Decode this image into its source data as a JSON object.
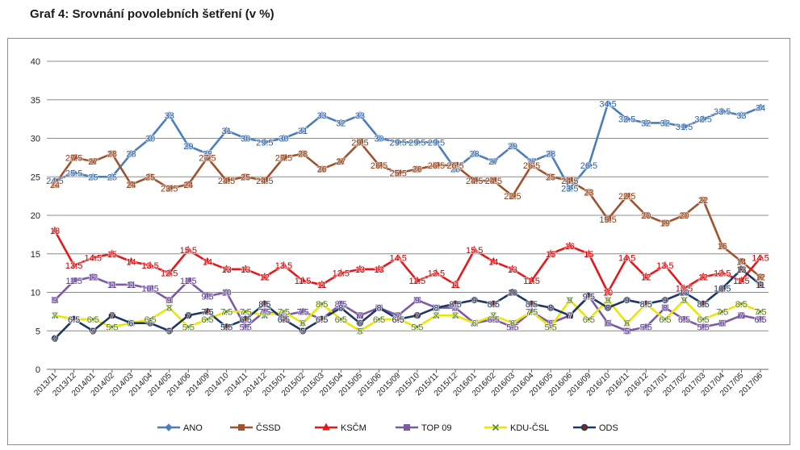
{
  "title": "Graf 4: Srovnání povolebních šetření (v %)",
  "chart_data": {
    "type": "line",
    "title": "Graf 4: Srovnání povolebních šetření (v %)",
    "xlabel": "",
    "ylabel": "",
    "ylim": [
      0,
      40
    ],
    "yticks": [
      "0",
      "5",
      "10",
      "15",
      "20",
      "25",
      "30",
      "35",
      "40"
    ],
    "grid": true,
    "legend_position": "bottom",
    "categories": [
      "2013/11",
      "2013/12",
      "2014/01",
      "2014/02",
      "2014/03",
      "2014/04",
      "2014/05",
      "2014/06",
      "2014/09",
      "2014/10",
      "2014/11",
      "2014/12",
      "2015/01",
      "2015/02",
      "2015/03",
      "2015/04",
      "2015/05",
      "2015/06",
      "2015/09",
      "2015/10",
      "2015/11",
      "2015/12",
      "2016/01",
      "2016/02",
      "2016/03",
      "2016/04",
      "2016/05",
      "2016/06",
      "2016/09",
      "2016/10",
      "2016/11",
      "2016/12",
      "2017/01",
      "2017/02",
      "2017/03",
      "2017/04",
      "2017/05",
      "2017/06"
    ],
    "series": [
      {
        "name": "ANO",
        "color": "#4a7ebb",
        "marker": "diamond",
        "values": [
          24.5,
          25.5,
          25,
          25,
          28,
          30,
          33,
          29,
          28,
          31,
          30,
          29.5,
          30,
          31,
          33,
          32,
          33,
          30,
          29.5,
          29.5,
          29.5,
          26,
          28,
          27,
          29,
          27,
          28,
          23.5,
          26.5,
          34.5,
          32.5,
          32,
          32,
          31.5,
          32.5,
          33.5,
          33,
          34
        ],
        "labels": [
          "24.5",
          "25.5",
          "25",
          "25",
          "28",
          "30",
          "33",
          "29",
          "28",
          "31",
          "30",
          "29.5",
          "30",
          "31",
          "33",
          "32",
          "33",
          "30",
          "29.5",
          "29.5",
          "29.5",
          "26",
          "28",
          "27",
          "29",
          "27",
          "28",
          "23.5",
          "26.5",
          "34.5",
          "32.5",
          "32",
          "32",
          "31.5",
          "32.5",
          "33.5",
          "33",
          "34"
        ]
      },
      {
        "name": "ČSSD",
        "color": "#a0522d",
        "marker": "square",
        "values": [
          24,
          27.5,
          27,
          28,
          24,
          25,
          23.5,
          24,
          27.5,
          24.5,
          25,
          24.5,
          27.5,
          28,
          26,
          27,
          29.5,
          26.5,
          25.5,
          26,
          26.5,
          26.5,
          24.5,
          24.5,
          22.5,
          26.5,
          25,
          24.5,
          23,
          19.5,
          22.5,
          20,
          19,
          20,
          22,
          16,
          14,
          12
        ],
        "labels": [
          "24",
          "27.5",
          "27",
          "28",
          "24",
          "25",
          "23.5",
          "24",
          "27.5",
          "24.5",
          "25",
          "24.5",
          "27.5",
          "28",
          "26",
          "27",
          "29.5",
          "26.5",
          "25.5",
          "26",
          "26.5",
          "26.5",
          "24.5",
          "24.5",
          "22.5",
          "26.5",
          "25",
          "24.5",
          "23",
          "19.5",
          "22.5",
          "20",
          "19",
          "20",
          "22",
          "16",
          "14",
          "12"
        ]
      },
      {
        "name": "KSČM",
        "color": "#e31a1c",
        "marker": "triangle",
        "values": [
          18,
          13.5,
          14.5,
          15,
          14,
          13.5,
          12.5,
          15.5,
          14,
          13,
          13,
          12,
          13.5,
          11.5,
          11,
          12.5,
          13,
          13,
          14.5,
          11.5,
          12.5,
          11,
          15.5,
          14,
          13,
          11.5,
          15,
          16,
          15,
          10,
          14.5,
          12,
          13.5,
          10.5,
          12,
          12.5,
          11.5,
          14.5
        ],
        "labels": [
          "18",
          "13.5",
          "14.5",
          "15",
          "14",
          "13.5",
          "12.5",
          "15.5",
          "14",
          "13",
          "13",
          "12",
          "13.5",
          "11.5",
          "11",
          "12.5",
          "13",
          "13",
          "14.5",
          "11.5",
          "12.5",
          "11",
          "15.5",
          "14",
          "13",
          "11.5",
          "15",
          "16",
          "15",
          "10",
          "14.5",
          "12",
          "13.5",
          "10.5",
          "12",
          "12.5",
          "11.5",
          "14.5"
        ]
      },
      {
        "name": "TOP 09",
        "color": "#7b5aa6",
        "marker": "square",
        "values": [
          9,
          11.5,
          12,
          11,
          11,
          10.5,
          9,
          11.5,
          9.5,
          10,
          5.5,
          7.5,
          7,
          7.5,
          6.5,
          8.5,
          7,
          8,
          7,
          9,
          8,
          8,
          6,
          6.5,
          5.5,
          7.5,
          6,
          7,
          9.5,
          6,
          5,
          5.5,
          8,
          6.5,
          5.5,
          6,
          7,
          6.5
        ],
        "labels": [
          "9",
          "11.5",
          "12",
          "11",
          "11",
          "10.5",
          "9",
          "11.5",
          "9.5",
          "10",
          "5.5",
          "7.5",
          "7",
          "7.5",
          "6.5",
          "8.5",
          "7",
          "8",
          "7",
          "9",
          "8",
          "8",
          "6",
          "6.5",
          "5.5",
          "7.5",
          "6",
          "7",
          "9.5",
          "6",
          "5",
          "5.5",
          "8",
          "6.5",
          "5.5",
          "6",
          "7",
          "6.5"
        ]
      },
      {
        "name": "KDU-ČSL",
        "color": "#e8e800",
        "marker": "x",
        "values": [
          7,
          6.5,
          6.5,
          5.5,
          6,
          6.5,
          8,
          5.5,
          6.5,
          7.5,
          7.5,
          7,
          7.5,
          6,
          8.5,
          6.5,
          5,
          6.5,
          6.5,
          5.5,
          7,
          7,
          6,
          7,
          6,
          7.5,
          5.5,
          9,
          6.5,
          9,
          6,
          8.5,
          6.5,
          9,
          6.5,
          7.5,
          8.5,
          7.5
        ],
        "labels": [
          "7",
          "6.5",
          "6.5",
          "5.5",
          "6",
          "6.5",
          "8",
          "5.5",
          "6.5",
          "7.5",
          "7.5",
          "7",
          "7.5",
          "6",
          "8.5",
          "6.5",
          "5",
          "6.5",
          "6.5",
          "5.5",
          "7",
          "7",
          "6",
          "7",
          "6",
          "7.5",
          "5.5",
          "9",
          "6.5",
          "9",
          "6",
          "8.5",
          "6.5",
          "9",
          "6.5",
          "7.5",
          "8.5",
          "7.5"
        ]
      },
      {
        "name": "ODS",
        "color": "#1f3864",
        "marker": "circle",
        "values": [
          4,
          6.5,
          5,
          7,
          6,
          6,
          5,
          7,
          7.5,
          5.5,
          6.5,
          8.5,
          6.5,
          5,
          6.5,
          8,
          6,
          8,
          6.5,
          7,
          8,
          8.5,
          9,
          8.5,
          10,
          8.5,
          8,
          7,
          9.5,
          8,
          9,
          8.5,
          9,
          10,
          8.5,
          10.5,
          13,
          11
        ],
        "labels": [
          "4",
          "6.5",
          "5",
          "7",
          "6",
          "6",
          "5",
          "7",
          "7.5",
          "5.5",
          "6.5",
          "8.5",
          "6.5",
          "5",
          "6.5",
          "8",
          "6",
          "8",
          "6.5",
          "7",
          "8",
          "8.5",
          "9",
          "8.5",
          "10",
          "8.5",
          "8",
          "7",
          "9.5",
          "8",
          "9",
          "8.5",
          "9",
          "10",
          "8.5",
          "10.5",
          "13",
          "11"
        ]
      }
    ]
  }
}
